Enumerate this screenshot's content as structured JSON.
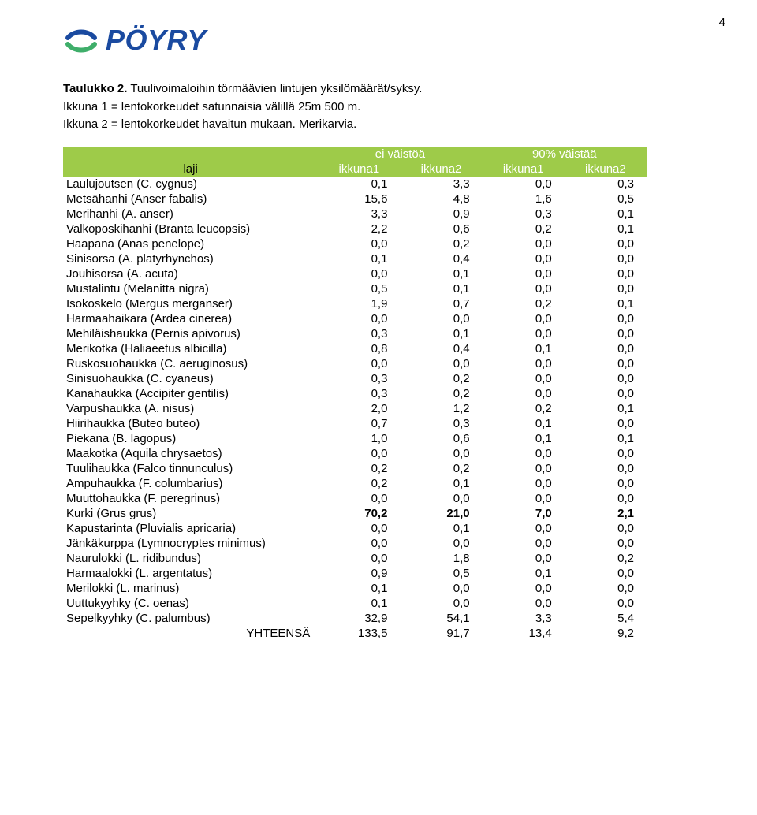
{
  "page_number": "4",
  "logo": {
    "brand": "PÖYRY",
    "dots": ".."
  },
  "caption": {
    "line1_a": "Taulukko 2.",
    "line1_b": " Tuulivoimaloihin törmäävien lintujen yksilömäärät/syksy.",
    "line2": "Ikkuna 1 = lentokorkeudet satunnaisia välillä 25m 500 m.",
    "line3": "Ikkuna 2 = lentokorkeudet havaitun mukaan. Merikarvia."
  },
  "table": {
    "header": {
      "laji_label": "laji",
      "group1": "ei väistöä",
      "group2": "90% väistää",
      "sub": [
        "ikkuna1",
        "ikkuna2",
        "ikkuna1",
        "ikkuna2"
      ]
    },
    "header_bg": "#9ecb49",
    "header_text": "#ffffff",
    "rows": [
      {
        "name": "Laulujoutsen (C. cygnus)",
        "v": [
          "0,1",
          "3,3",
          "0,0",
          "0,3"
        ]
      },
      {
        "name": "Metsähanhi (Anser fabalis)",
        "v": [
          "15,6",
          "4,8",
          "1,6",
          "0,5"
        ]
      },
      {
        "name": "Merihanhi (A. anser)",
        "v": [
          "3,3",
          "0,9",
          "0,3",
          "0,1"
        ]
      },
      {
        "name": "Valkoposkihanhi (Branta leucopsis)",
        "v": [
          "2,2",
          "0,6",
          "0,2",
          "0,1"
        ]
      },
      {
        "name": "Haapana (Anas penelope)",
        "v": [
          "0,0",
          "0,2",
          "0,0",
          "0,0"
        ]
      },
      {
        "name": "Sinisorsa (A. platyrhynchos)",
        "v": [
          "0,1",
          "0,4",
          "0,0",
          "0,0"
        ]
      },
      {
        "name": "Jouhisorsa (A. acuta)",
        "v": [
          "0,0",
          "0,1",
          "0,0",
          "0,0"
        ]
      },
      {
        "name": "Mustalintu (Melanitta nigra)",
        "v": [
          "0,5",
          "0,1",
          "0,0",
          "0,0"
        ]
      },
      {
        "name": "Isokoskelo (Mergus merganser)",
        "v": [
          "1,9",
          "0,7",
          "0,2",
          "0,1"
        ]
      },
      {
        "name": "Harmaahaikara (Ardea cinerea)",
        "v": [
          "0,0",
          "0,0",
          "0,0",
          "0,0"
        ]
      },
      {
        "name": "Mehiläishaukka (Pernis apivorus)",
        "v": [
          "0,3",
          "0,1",
          "0,0",
          "0,0"
        ]
      },
      {
        "name": "Merikotka (Haliaeetus albicilla)",
        "v": [
          "0,8",
          "0,4",
          "0,1",
          "0,0"
        ]
      },
      {
        "name": "Ruskosuohaukka (C. aeruginosus)",
        "v": [
          "0,0",
          "0,0",
          "0,0",
          "0,0"
        ]
      },
      {
        "name": "Sinisuohaukka (C. cyaneus)",
        "v": [
          "0,3",
          "0,2",
          "0,0",
          "0,0"
        ]
      },
      {
        "name": "Kanahaukka (Accipiter gentilis)",
        "v": [
          "0,3",
          "0,2",
          "0,0",
          "0,0"
        ]
      },
      {
        "name": "Varpushaukka (A. nisus)",
        "v": [
          "2,0",
          "1,2",
          "0,2",
          "0,1"
        ]
      },
      {
        "name": "Hiirihaukka (Buteo buteo)",
        "v": [
          "0,7",
          "0,3",
          "0,1",
          "0,0"
        ]
      },
      {
        "name": "Piekana (B. lagopus)",
        "v": [
          "1,0",
          "0,6",
          "0,1",
          "0,1"
        ]
      },
      {
        "name": "Maakotka (Aquila chrysaetos)",
        "v": [
          "0,0",
          "0,0",
          "0,0",
          "0,0"
        ]
      },
      {
        "name": "Tuulihaukka (Falco tinnunculus)",
        "v": [
          "0,2",
          "0,2",
          "0,0",
          "0,0"
        ]
      },
      {
        "name": "Ampuhaukka (F. columbarius)",
        "v": [
          "0,2",
          "0,1",
          "0,0",
          "0,0"
        ]
      },
      {
        "name": "Muuttohaukka (F. peregrinus)",
        "v": [
          "0,0",
          "0,0",
          "0,0",
          "0,0"
        ]
      },
      {
        "name": "Kurki (Grus grus)",
        "v": [
          "70,2",
          "21,0",
          "7,0",
          "2,1"
        ],
        "highlight": true
      },
      {
        "name": "Kapustarinta (Pluvialis apricaria)",
        "v": [
          "0,0",
          "0,1",
          "0,0",
          "0,0"
        ]
      },
      {
        "name": "Jänkäkurppa (Lymnocryptes minimus)",
        "v": [
          "0,0",
          "0,0",
          "0,0",
          "0,0"
        ],
        "wrap": true
      },
      {
        "name": "Naurulokki (L. ridibundus)",
        "v": [
          "0,0",
          "1,8",
          "0,0",
          "0,2"
        ]
      },
      {
        "name": "Harmaalokki (L. argentatus)",
        "v": [
          "0,9",
          "0,5",
          "0,1",
          "0,0"
        ]
      },
      {
        "name": "Merilokki (L. marinus)",
        "v": [
          "0,1",
          "0,0",
          "0,0",
          "0,0"
        ]
      },
      {
        "name": "Uuttukyyhky (C. oenas)",
        "v": [
          "0,1",
          "0,0",
          "0,0",
          "0,0"
        ]
      },
      {
        "name": "Sepelkyyhky (C. palumbus)",
        "v": [
          "32,9",
          "54,1",
          "3,3",
          "5,4"
        ]
      }
    ],
    "total": {
      "label": "YHTEENSÄ",
      "v": [
        "133,5",
        "91,7",
        "13,4",
        "9,2"
      ]
    }
  }
}
